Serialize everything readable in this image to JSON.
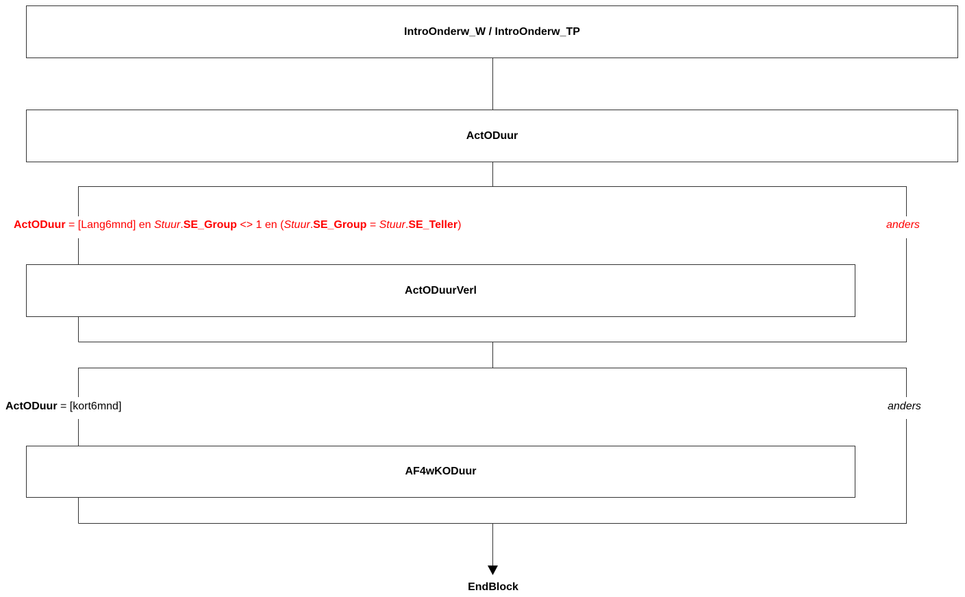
{
  "nodes": {
    "intro": "IntroOnderw_W / IntroOnderw_TP",
    "actoduur": "ActODuur",
    "actoduurverl": "ActODuurVerl",
    "af4wkoduur": "AF4wKODuur",
    "end": "EndBlock"
  },
  "conditions": {
    "cond1": {
      "var": "ActODuur",
      "t1": " = [Lang6mnd] en ",
      "stuur1": "Stuur",
      "dot1": ".",
      "se_group1": "SE_Group",
      "t2": " <> 1 en (",
      "stuur2": "Stuur",
      "dot2": ".",
      "se_group2": "SE_Group",
      "t3": " = ",
      "stuur3": "Stuur",
      "dot3": ".",
      "se_teller": "SE_Teller",
      "t4": ")",
      "else_label": "anders",
      "color": "#ff0000"
    },
    "cond2": {
      "var": "ActODuur",
      "t1": " = [kort6mnd]",
      "else_label": "anders",
      "color": "#000000"
    }
  }
}
